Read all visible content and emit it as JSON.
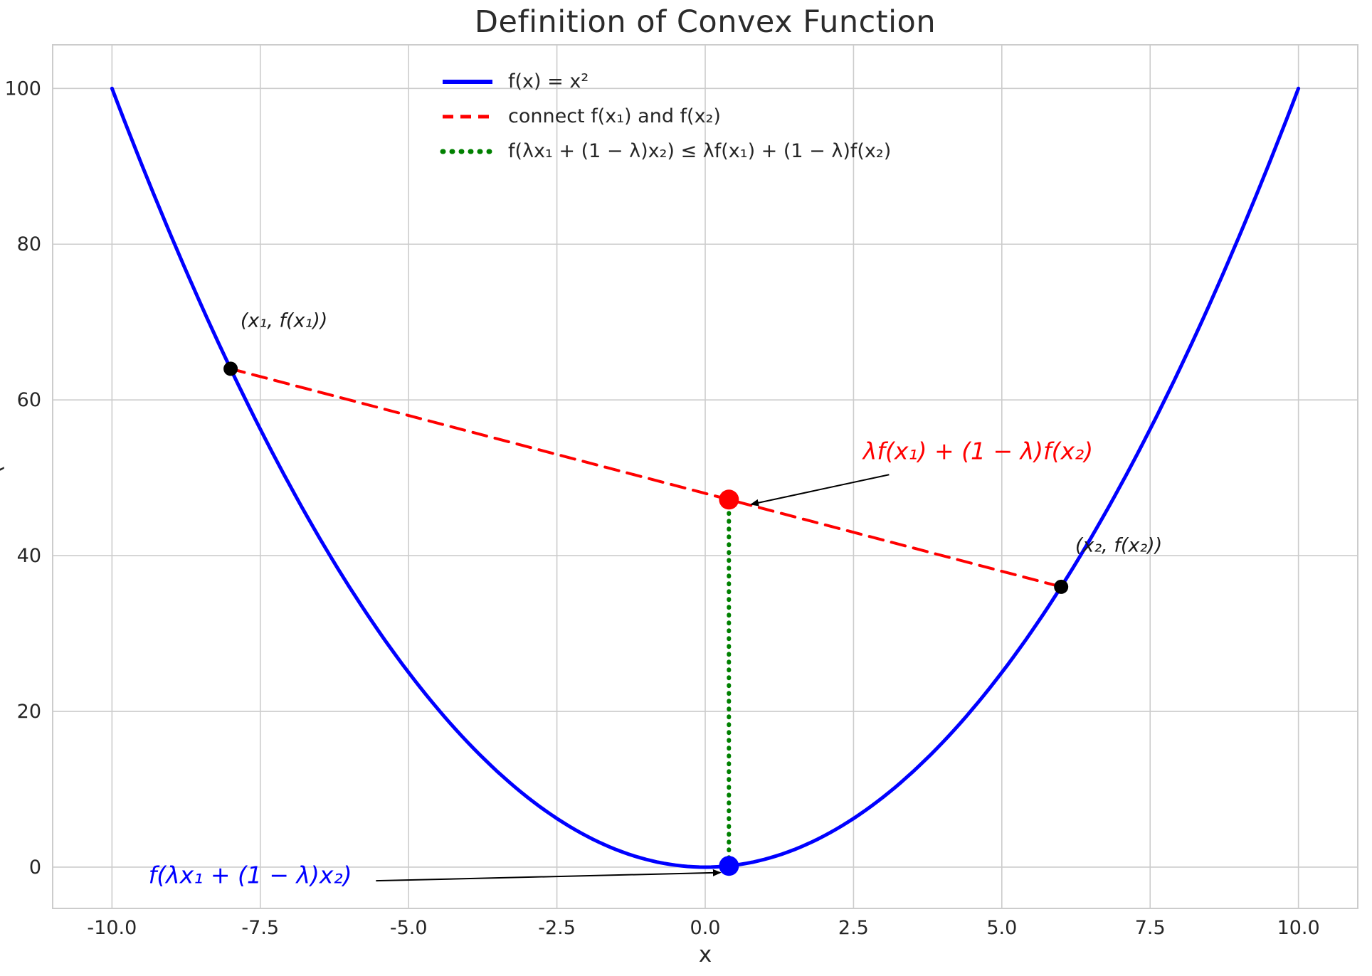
{
  "chart_data": {
    "type": "line",
    "title": "Definition of Convex Function",
    "xlabel": "x",
    "ylabel_fragment": "(",
    "xlim": [
      -11,
      11
    ],
    "ylim": [
      -5.3,
      105.6
    ],
    "xticks": [
      -10,
      -7.5,
      -5,
      -2.5,
      0,
      2.5,
      5,
      7.5,
      10
    ],
    "xtick_labels": [
      "-10.0",
      "-7.5",
      "-5.0",
      "-2.5",
      "0.0",
      "2.5",
      "5.0",
      "7.5",
      "10.0"
    ],
    "yticks": [
      0,
      20,
      40,
      60,
      80,
      100
    ],
    "ytick_labels": [
      "0",
      "20",
      "40",
      "60",
      "80",
      "100"
    ],
    "grid": true,
    "legend_position": "upper center",
    "background_color": "#ffffff",
    "grid_color": "#cccccc",
    "text_color": "#262626",
    "x1": -8,
    "x2": 6,
    "lambda": 0.4,
    "series": [
      {
        "name": "curve",
        "label": "f(x) = x²",
        "kind": "function",
        "fn": "x^2",
        "x_range": [
          -10,
          10
        ],
        "color": "#0000ff",
        "dash": "solid",
        "width": 5
      },
      {
        "name": "chord",
        "label": "connect f(x₁) and f(x₂)",
        "kind": "segment",
        "points": [
          [
            -8,
            64
          ],
          [
            6,
            36
          ]
        ],
        "color": "#ff0000",
        "dash": "dashed",
        "width": 4
      },
      {
        "name": "inequality",
        "label": "f(λx₁ + (1 − λ)x₂) ≤ λf(x₁) + (1 − λ)f(x₂)",
        "kind": "segment",
        "points": [
          [
            0.4,
            0.16
          ],
          [
            0.4,
            47.2
          ]
        ],
        "color": "#008000",
        "dash": "dotted",
        "width": 6
      }
    ],
    "points": [
      {
        "name": "point-x1",
        "x": -8,
        "y": 64,
        "color": "#000000",
        "r": 10
      },
      {
        "name": "point-x2",
        "x": 6,
        "y": 36,
        "color": "#000000",
        "r": 10
      },
      {
        "name": "point-chord-interp",
        "x": 0.4,
        "y": 47.2,
        "color": "#ff0000",
        "r": 14
      },
      {
        "name": "point-curve-interp",
        "x": 0.4,
        "y": 0.16,
        "color": "#0000ff",
        "r": 14
      }
    ],
    "annotations": [
      {
        "name": "label-point-x1",
        "text": "(x₁, f(x₁))",
        "x": -7.1,
        "y": 70.2,
        "color": "#1a1a1a",
        "size": 27
      },
      {
        "name": "label-point-x2",
        "text": "(x₂, f(x₂))",
        "x": 6.97,
        "y": 41.3,
        "color": "#1a1a1a",
        "size": 27
      },
      {
        "name": "label-chord-interp",
        "text": "λf(x₁) + (1 − λ)f(x₂)",
        "x": 4.6,
        "y": 53.4,
        "color": "#ff0000",
        "size": 33,
        "arrow": {
          "from": [
            3.1,
            50.4
          ],
          "to": [
            0.78,
            46.6
          ]
        }
      },
      {
        "name": "label-curve-interp",
        "text": "f(λx₁ + (1 − λ)x₂)",
        "x": -7.67,
        "y": -1.05,
        "color": "#0000ff",
        "size": 33,
        "arrow": {
          "from": [
            -5.55,
            -1.75
          ],
          "to": [
            0.25,
            -0.7
          ]
        }
      }
    ]
  }
}
